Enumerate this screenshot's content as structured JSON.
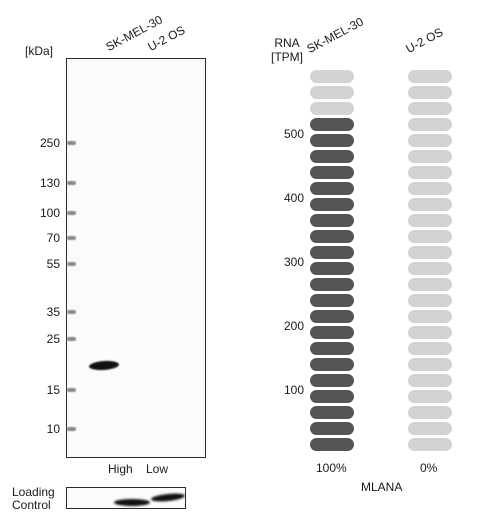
{
  "western_blot": {
    "unit_label": "[kDa]",
    "lanes": [
      {
        "header": "SK-MEL-30",
        "bottom_label": "High"
      },
      {
        "header": "U-2 OS",
        "bottom_label": "Low"
      }
    ],
    "markers": [
      "250",
      "130",
      "100",
      "70",
      "55",
      "35",
      "25",
      "15",
      "10"
    ],
    "loading_control_label_line1": "Loading",
    "loading_control_label_line2": "Control"
  },
  "rna": {
    "header_line1": "RNA",
    "header_line2": "[TPM]",
    "gene": "MLANA",
    "scale_ticks": [
      "500",
      "400",
      "300",
      "200",
      "100"
    ],
    "total_cells": 24,
    "samples": [
      {
        "name": "SK-MEL-30",
        "percent": "100%",
        "filled_cells": 21,
        "fill_color": "#555555",
        "empty_color": "#d3d3d3"
      },
      {
        "name": "U-2 OS",
        "percent": "0%",
        "filled_cells": 0,
        "fill_color": "#555555",
        "empty_color": "#d3d3d3"
      }
    ]
  }
}
